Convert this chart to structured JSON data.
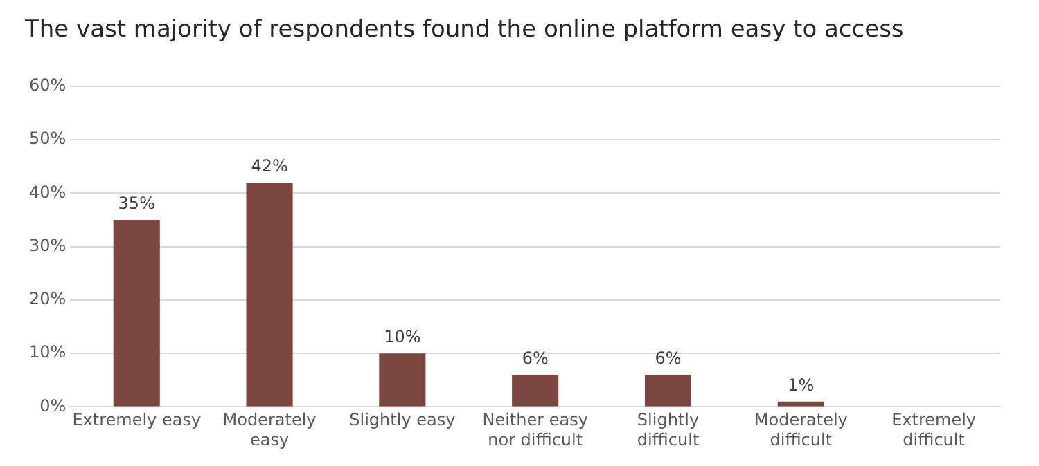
{
  "chart_data": {
    "type": "bar",
    "title": "The vast majority of respondents found the online platform easy to access",
    "categories": [
      "Extremely easy",
      "Moderately easy",
      "Slightly easy",
      "Neither easy nor difficult",
      "Slightly difficult",
      "Moderately difficult",
      "Extremely difficult"
    ],
    "values": [
      35,
      42,
      10,
      6,
      6,
      1,
      null
    ],
    "color": "#7b4540",
    "ylim": [
      0,
      60
    ],
    "yticks": [
      {
        "value": 0,
        "label": "0%"
      },
      {
        "value": 10,
        "label": "10%"
      },
      {
        "value": 20,
        "label": "20%"
      },
      {
        "value": 30,
        "label": "30%"
      },
      {
        "value": 40,
        "label": "40%"
      },
      {
        "value": 50,
        "label": "50%"
      },
      {
        "value": 60,
        "label": "60%"
      }
    ],
    "grid": "y",
    "value_labels": [
      "35%",
      "42%",
      "10%",
      "6%",
      "6%",
      "1%",
      null
    ]
  }
}
